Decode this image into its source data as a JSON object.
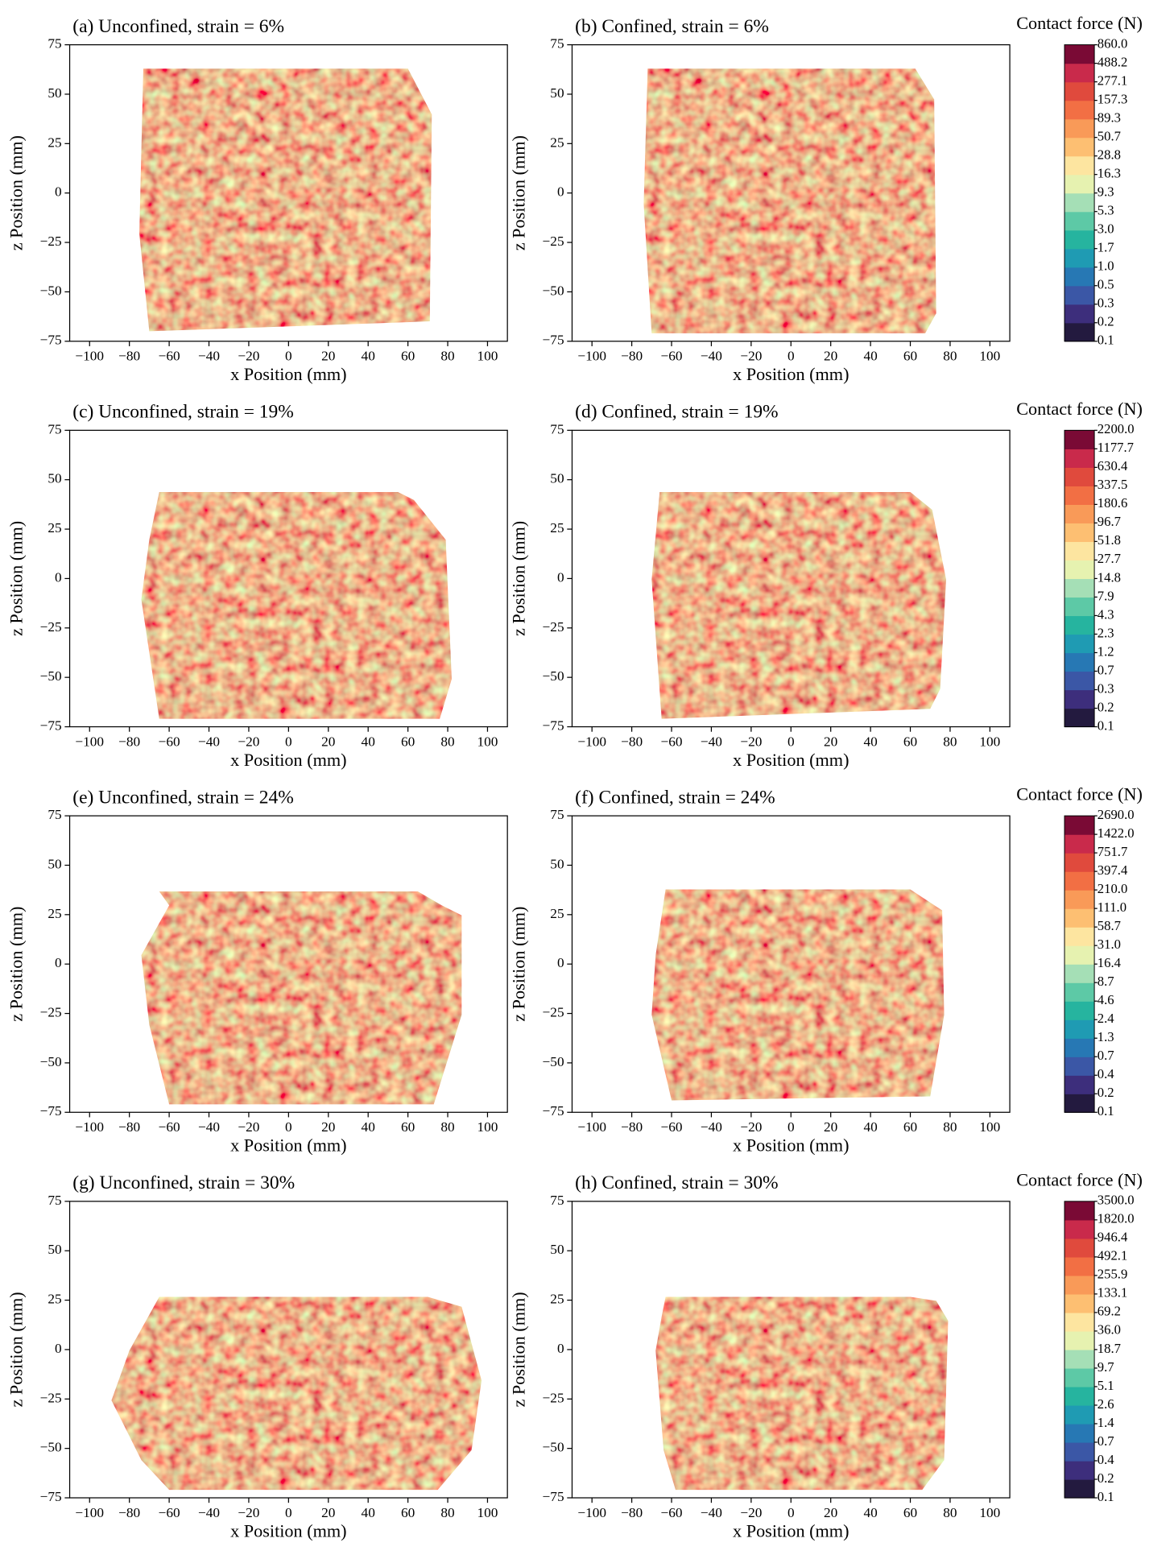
{
  "chart_data": [
    {
      "type": "contour",
      "title": "(a) Unconfined, strain = 6%",
      "xlabel": "x Position (mm)",
      "ylabel": "z Position (mm)",
      "xlim": [
        -110,
        110
      ],
      "ylim": [
        -75,
        75
      ],
      "xticks": [
        {
          "value": -100,
          "label": "−100"
        },
        {
          "value": -80,
          "label": "−80"
        },
        {
          "value": -60,
          "label": "−60"
        },
        {
          "value": -40,
          "label": "−40"
        },
        {
          "value": -20,
          "label": "−20"
        },
        0,
        20,
        40,
        60,
        80,
        100
      ],
      "yticks": [
        {
          "value": -75,
          "label": "−75"
        },
        {
          "value": -50,
          "label": "−50"
        },
        {
          "value": -25,
          "label": "−25"
        },
        0,
        25,
        50,
        75
      ]
    },
    {
      "type": "contour",
      "title": "(b) Confined, strain = 6%",
      "xlabel": "x Position (mm)",
      "ylabel": "z Position (mm)",
      "xlim": [
        -110,
        110
      ],
      "ylim": [
        -75,
        75
      ],
      "xticks": [
        {
          "value": -100,
          "label": "−100"
        },
        {
          "value": -80,
          "label": "−80"
        },
        {
          "value": -60,
          "label": "−60"
        },
        {
          "value": -40,
          "label": "−40"
        },
        {
          "value": -20,
          "label": "−20"
        },
        0,
        20,
        40,
        60,
        80,
        100
      ],
      "yticks": [
        {
          "value": -75,
          "label": "−75"
        },
        {
          "value": -50,
          "label": "−50"
        },
        {
          "value": -25,
          "label": "−25"
        },
        0,
        25,
        50,
        75
      ],
      "colorbar": {
        "label": "Contact force (N)",
        "levels": [
          0.1,
          0.2,
          0.3,
          0.5,
          {
            "value": 1,
            "label": "1.0"
          },
          1.7,
          {
            "value": 3,
            "label": "3.0"
          },
          5.3,
          9.3,
          16.3,
          28.8,
          50.7,
          89.3,
          157.3,
          277.1,
          488.2,
          {
            "value": 860,
            "label": "860.0"
          }
        ],
        "colors": [
          "#231a3f",
          "#3d2e7c",
          "#3b57a6",
          "#2778b4",
          "#1f9bb3",
          "#26b49f",
          "#5dc9a6",
          "#a5dfb6",
          "#e6f2b0",
          "#fde5a0",
          "#fdbf72",
          "#f99a58",
          "#f26f44",
          "#e04a3d",
          "#c92a4b",
          "#7a0a35"
        ]
      }
    },
    {
      "type": "contour",
      "title": "(c) Unconfined, strain = 19%",
      "xlabel": "x Position (mm)",
      "ylabel": "z Position (mm)",
      "xlim": [
        -110,
        110
      ],
      "ylim": [
        -75,
        75
      ],
      "xticks": [
        {
          "value": -100,
          "label": "−100"
        },
        {
          "value": -80,
          "label": "−80"
        },
        {
          "value": -60,
          "label": "−60"
        },
        {
          "value": -40,
          "label": "−40"
        },
        {
          "value": -20,
          "label": "−20"
        },
        0,
        20,
        40,
        60,
        80,
        100
      ],
      "yticks": [
        {
          "value": -75,
          "label": "−75"
        },
        {
          "value": -50,
          "label": "−50"
        },
        {
          "value": -25,
          "label": "−25"
        },
        0,
        25,
        50,
        75
      ]
    },
    {
      "type": "contour",
      "title": "(d) Confined, strain = 19%",
      "xlabel": "x Position (mm)",
      "ylabel": "z Position (mm)",
      "xlim": [
        -110,
        110
      ],
      "ylim": [
        -75,
        75
      ],
      "xticks": [
        {
          "value": -100,
          "label": "−100"
        },
        {
          "value": -80,
          "label": "−80"
        },
        {
          "value": -60,
          "label": "−60"
        },
        {
          "value": -40,
          "label": "−40"
        },
        {
          "value": -20,
          "label": "−20"
        },
        0,
        20,
        40,
        60,
        80,
        100
      ],
      "yticks": [
        {
          "value": -75,
          "label": "−75"
        },
        {
          "value": -50,
          "label": "−50"
        },
        {
          "value": -25,
          "label": "−25"
        },
        0,
        25,
        50,
        75
      ],
      "colorbar": {
        "label": "Contact force (N)",
        "levels": [
          0.1,
          0.2,
          0.3,
          0.7,
          1.2,
          2.3,
          4.3,
          7.9,
          14.8,
          27.7,
          51.8,
          96.7,
          180.6,
          337.5,
          630.4,
          1177.7,
          {
            "value": 2200,
            "label": "2200.0"
          }
        ],
        "colors": [
          "#231a3f",
          "#3d2e7c",
          "#3b57a6",
          "#2778b4",
          "#1f9bb3",
          "#26b49f",
          "#5dc9a6",
          "#a5dfb6",
          "#e6f2b0",
          "#fde5a0",
          "#fdbf72",
          "#f99a58",
          "#f26f44",
          "#e04a3d",
          "#c92a4b",
          "#7a0a35"
        ]
      }
    },
    {
      "type": "contour",
      "title": "(e) Unconfined, strain = 24%",
      "xlabel": "x Position (mm)",
      "ylabel": "z Position (mm)",
      "xlim": [
        -110,
        110
      ],
      "ylim": [
        -75,
        75
      ],
      "xticks": [
        {
          "value": -100,
          "label": "−100"
        },
        {
          "value": -80,
          "label": "−80"
        },
        {
          "value": -60,
          "label": "−60"
        },
        {
          "value": -40,
          "label": "−40"
        },
        {
          "value": -20,
          "label": "−20"
        },
        0,
        20,
        40,
        60,
        80,
        100
      ],
      "yticks": [
        {
          "value": -75,
          "label": "−75"
        },
        {
          "value": -50,
          "label": "−50"
        },
        {
          "value": -25,
          "label": "−25"
        },
        0,
        25,
        50,
        75
      ]
    },
    {
      "type": "contour",
      "title": "(f) Confined, strain = 24%",
      "xlabel": "x Position (mm)",
      "ylabel": "z Position (mm)",
      "xlim": [
        -110,
        110
      ],
      "ylim": [
        -75,
        75
      ],
      "xticks": [
        {
          "value": -100,
          "label": "−100"
        },
        {
          "value": -80,
          "label": "−80"
        },
        {
          "value": -60,
          "label": "−60"
        },
        {
          "value": -40,
          "label": "−40"
        },
        {
          "value": -20,
          "label": "−20"
        },
        0,
        20,
        40,
        60,
        80,
        100
      ],
      "yticks": [
        {
          "value": -75,
          "label": "−75"
        },
        {
          "value": -50,
          "label": "−50"
        },
        {
          "value": -25,
          "label": "−25"
        },
        0,
        25,
        50,
        75
      ],
      "colorbar": {
        "label": "Contact force (N)",
        "levels": [
          0.1,
          0.2,
          0.4,
          0.7,
          1.3,
          2.4,
          4.6,
          8.7,
          16.4,
          {
            "value": 31,
            "label": "31.0"
          },
          58.7,
          {
            "value": 111,
            "label": "111.0"
          },
          {
            "value": 210,
            "label": "210.0"
          },
          397.4,
          751.7,
          {
            "value": 1422,
            "label": "1422.0"
          },
          {
            "value": 2690,
            "label": "2690.0"
          }
        ],
        "colors": [
          "#231a3f",
          "#3d2e7c",
          "#3b57a6",
          "#2778b4",
          "#1f9bb3",
          "#26b49f",
          "#5dc9a6",
          "#a5dfb6",
          "#e6f2b0",
          "#fde5a0",
          "#fdbf72",
          "#f99a58",
          "#f26f44",
          "#e04a3d",
          "#c92a4b",
          "#7a0a35"
        ]
      }
    },
    {
      "type": "contour",
      "title": "(g) Unconfined, strain = 30%",
      "xlabel": "x Position (mm)",
      "ylabel": "z Position (mm)",
      "xlim": [
        -110,
        110
      ],
      "ylim": [
        -75,
        75
      ],
      "xticks": [
        {
          "value": -100,
          "label": "−100"
        },
        {
          "value": -80,
          "label": "−80"
        },
        {
          "value": -60,
          "label": "−60"
        },
        {
          "value": -40,
          "label": "−40"
        },
        {
          "value": -20,
          "label": "−20"
        },
        0,
        20,
        40,
        60,
        80,
        100
      ],
      "yticks": [
        {
          "value": -75,
          "label": "−75"
        },
        {
          "value": -50,
          "label": "−50"
        },
        {
          "value": -25,
          "label": "−25"
        },
        0,
        25,
        50,
        75
      ]
    },
    {
      "type": "contour",
      "title": "(h) Confined, strain = 30%",
      "xlabel": "x Position (mm)",
      "ylabel": "z Position (mm)",
      "xlim": [
        -110,
        110
      ],
      "ylim": [
        -75,
        75
      ],
      "xticks": [
        {
          "value": -100,
          "label": "−100"
        },
        {
          "value": -80,
          "label": "−80"
        },
        {
          "value": -60,
          "label": "−60"
        },
        {
          "value": -40,
          "label": "−40"
        },
        {
          "value": -20,
          "label": "−20"
        },
        0,
        20,
        40,
        60,
        80,
        100
      ],
      "yticks": [
        {
          "value": -75,
          "label": "−75"
        },
        {
          "value": -50,
          "label": "−50"
        },
        {
          "value": -25,
          "label": "−25"
        },
        0,
        25,
        50,
        75
      ],
      "colorbar": {
        "label": "Contact force (N)",
        "levels": [
          0.1,
          0.2,
          0.4,
          0.7,
          1.4,
          2.6,
          5.1,
          9.7,
          18.7,
          {
            "value": 36,
            "label": "36.0"
          },
          69.2,
          133.1,
          255.9,
          492.1,
          946.4,
          {
            "value": 1820,
            "label": "1820.0"
          },
          {
            "value": 3500,
            "label": "3500.0"
          }
        ],
        "colors": [
          "#231a3f",
          "#3d2e7c",
          "#3b57a6",
          "#2778b4",
          "#1f9bb3",
          "#26b49f",
          "#5dc9a6",
          "#a5dfb6",
          "#e6f2b0",
          "#fde5a0",
          "#fdbf72",
          "#f99a58",
          "#f26f44",
          "#e04a3d",
          "#c92a4b",
          "#7a0a35"
        ]
      }
    }
  ]
}
